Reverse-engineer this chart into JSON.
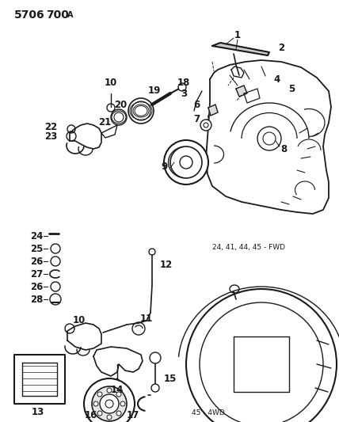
{
  "title": "5706  700 A",
  "bg_color": "#ffffff",
  "line_color": "#1a1a1a",
  "note_fwd": "24, 41, 44, 45 - FWD",
  "note_4wd": "45 - 4WD",
  "title_fontsize": 10,
  "label_fontsize": 8.5
}
